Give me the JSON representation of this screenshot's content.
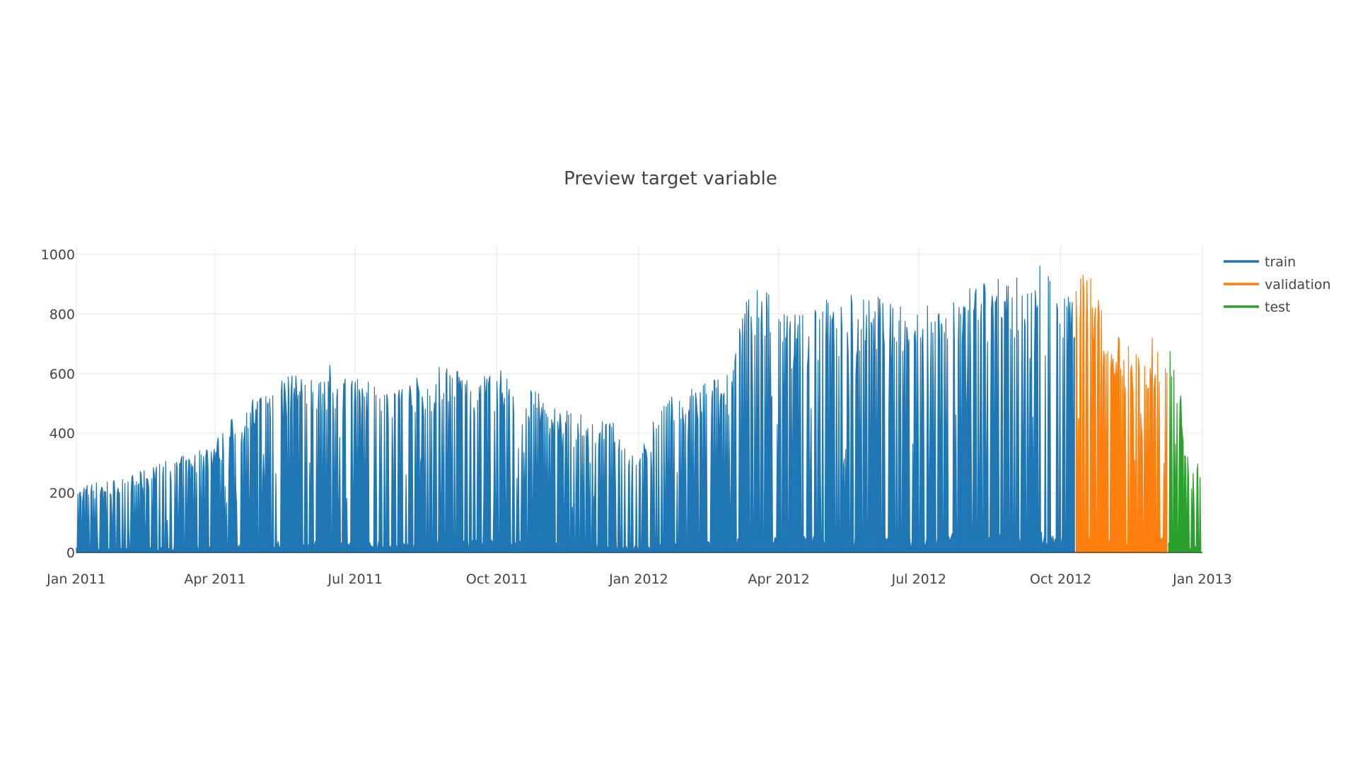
{
  "chart_data": {
    "type": "line",
    "title": "Preview target variable",
    "xlabel": "",
    "ylabel": "",
    "x_axis_type": "date",
    "xlim": [
      "2011-01-01",
      "2013-01-01"
    ],
    "ylim": [
      0,
      1000
    ],
    "grid": true,
    "legend_position": "top-right",
    "x_tick_labels": [
      "Jan 2011",
      "Apr 2011",
      "Jul 2011",
      "Oct 2011",
      "Jan 2012",
      "Apr 2012",
      "Jul 2012",
      "Oct 2012",
      "Jan 2013"
    ],
    "x_tick_values": [
      "2011-01-01",
      "2011-04-01",
      "2011-07-01",
      "2011-10-01",
      "2012-01-01",
      "2012-04-01",
      "2012-07-01",
      "2012-10-01",
      "2013-01-01"
    ],
    "y_tick_labels": [
      "0",
      "200",
      "400",
      "600",
      "800",
      "1000"
    ],
    "y_tick_values": [
      0,
      200,
      400,
      600,
      800,
      1000
    ],
    "series": [
      {
        "name": "train",
        "color": "#1f77b4",
        "x": [
          "2011-01-01",
          "2011-01-15",
          "2011-02-01",
          "2011-02-15",
          "2011-03-01",
          "2011-03-15",
          "2011-04-01",
          "2011-04-15",
          "2011-05-01",
          "2011-05-15",
          "2011-06-01",
          "2011-06-15",
          "2011-07-01",
          "2011-07-15",
          "2011-08-01",
          "2011-08-15",
          "2011-09-01",
          "2011-09-15",
          "2011-10-01",
          "2011-10-15",
          "2011-11-01",
          "2011-11-15",
          "2011-12-01",
          "2011-12-15",
          "2012-01-01",
          "2012-01-15",
          "2012-02-01",
          "2012-02-15",
          "2012-03-01",
          "2012-03-15",
          "2012-04-01",
          "2012-04-15",
          "2012-05-01",
          "2012-05-15",
          "2012-06-01",
          "2012-06-15",
          "2012-07-01",
          "2012-07-15",
          "2012-08-01",
          "2012-08-15",
          "2012-09-01",
          "2012-09-15",
          "2012-10-01",
          "2012-10-10"
        ],
        "y": [
          220,
          240,
          250,
          280,
          310,
          330,
          380,
          470,
          540,
          610,
          580,
          630,
          590,
          580,
          570,
          600,
          650,
          590,
          620,
          580,
          520,
          480,
          450,
          440,
          320,
          510,
          540,
          580,
          620,
          960,
          820,
          810,
          850,
          870,
          880,
          830,
          880,
          900,
          880,
          920,
          960,
          980,
          920,
          900
        ]
      },
      {
        "name": "validation",
        "color": "#ff7f0e",
        "x": [
          "2012-10-11",
          "2012-10-20",
          "2012-11-01",
          "2012-11-15",
          "2012-12-01",
          "2012-12-09"
        ],
        "y": [
          950,
          960,
          730,
          720,
          720,
          760
        ]
      },
      {
        "name": "test",
        "color": "#2ca02c",
        "x": [
          "2012-12-10",
          "2012-12-15",
          "2012-12-20",
          "2012-12-25",
          "2012-12-31"
        ],
        "y": [
          720,
          680,
          430,
          270,
          315
        ]
      }
    ]
  }
}
